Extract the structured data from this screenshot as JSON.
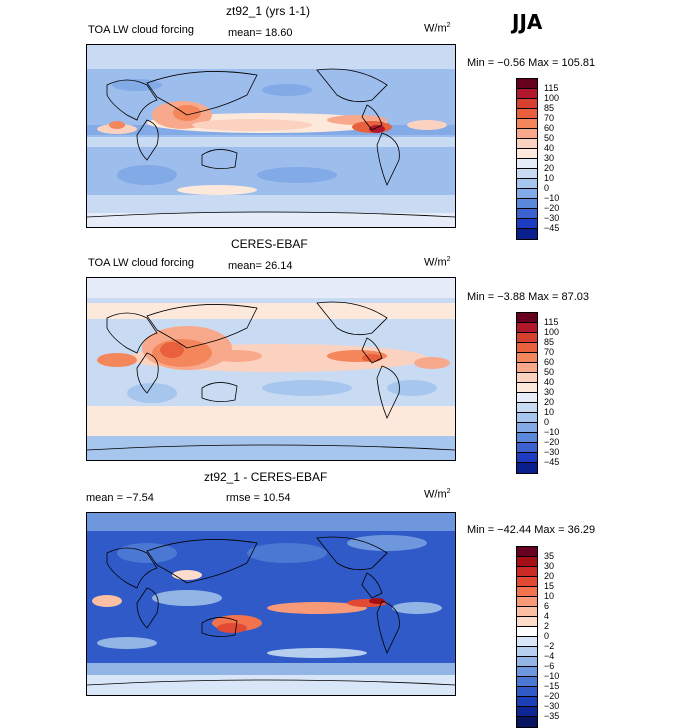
{
  "season": "JJA",
  "panels": [
    {
      "title": "zt92_1 (yrs 1-1)",
      "left_label": "TOA LW cloud forcing",
      "mid_label": "mean=  18.60",
      "units": "W/m",
      "units_sup": "2",
      "minmax": "Min =  −0.56 Max = 105.81",
      "colorbar": {
        "labels": [
          "115",
          "100",
          "85",
          "70",
          "60",
          "50",
          "40",
          "30",
          "20",
          "10",
          "0",
          "−10",
          "−20",
          "−30",
          "−45"
        ],
        "colors": [
          "#67001f",
          "#b2182b",
          "#d6402f",
          "#e8603c",
          "#f4865c",
          "#f9a98b",
          "#fbd2bf",
          "#fde9dc",
          "#e6edf8",
          "#c9dbf3",
          "#a7c6ee",
          "#82aae6",
          "#5a89dc",
          "#3c62cf",
          "#1e3cbf",
          "#0a1e8c"
        ]
      }
    },
    {
      "title": "CERES-EBAF",
      "left_label": "TOA LW cloud forcing",
      "mid_label": "mean=  26.14",
      "units": "W/m",
      "units_sup": "2",
      "minmax": "Min =  −3.88 Max =  87.03",
      "colorbar": {
        "labels": [
          "115",
          "100",
          "85",
          "70",
          "60",
          "50",
          "40",
          "30",
          "20",
          "10",
          "0",
          "−10",
          "−20",
          "−30",
          "−45"
        ],
        "colors": [
          "#67001f",
          "#b2182b",
          "#d6402f",
          "#e8603c",
          "#f4865c",
          "#f9a98b",
          "#fbd2bf",
          "#fde9dc",
          "#e6edf8",
          "#c9dbf3",
          "#a7c6ee",
          "#82aae6",
          "#5a89dc",
          "#3c62cf",
          "#1e3cbf",
          "#0a1e8c"
        ]
      }
    },
    {
      "title": "zt92_1 - CERES-EBAF",
      "left_label": "mean =  −7.54",
      "mid_label": "rmse =  10.54",
      "units": "W/m",
      "units_sup": "2",
      "minmax": "Min = −42.44 Max =  36.29",
      "colorbar": {
        "labels": [
          "35",
          "30",
          "20",
          "15",
          "10",
          "6",
          "4",
          "2",
          "0",
          "−2",
          "−4",
          "−6",
          "−10",
          "−15",
          "−20",
          "−30",
          "−35"
        ],
        "colors": [
          "#67001f",
          "#a50f15",
          "#cb2a24",
          "#e34a33",
          "#f4734f",
          "#f89a78",
          "#fbbfa4",
          "#fddccb",
          "#ffffff",
          "#d9e6f7",
          "#b7cfee",
          "#93b5e6",
          "#6e97dd",
          "#4b78d3",
          "#2f5ac8",
          "#1c3fb8",
          "#0d2694",
          "#08145f"
        ]
      }
    }
  ]
}
